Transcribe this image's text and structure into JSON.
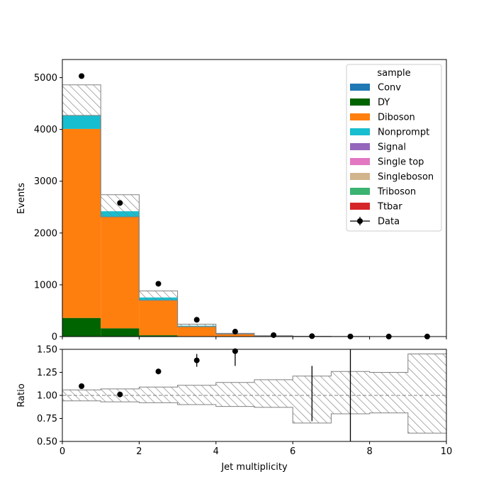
{
  "colors": {
    "Conv": "#1f77b4",
    "DY": "#006400",
    "Diboson": "#ff7f0e",
    "Nonprompt": "#17becf",
    "Signal": "#9467bd",
    "Single top": "#e377c2",
    "Singleboson": "#d2b48c",
    "Triboson": "#3cb371",
    "Ttbar": "#d62728",
    "Data": "#000000",
    "uncertainty": "#808080"
  },
  "chart_data": [
    {
      "type": "bar",
      "stacked": true,
      "bin_edges": [
        0,
        1,
        2,
        3,
        4,
        5,
        6,
        7,
        8,
        9,
        10
      ],
      "xlim": [
        0,
        10
      ],
      "ylim": [
        0,
        5350
      ],
      "xticks": [
        0,
        2,
        4,
        6,
        8,
        10
      ],
      "yticks": [
        0,
        1000,
        2000,
        3000,
        4000,
        5000
      ],
      "ylabel": "Events",
      "xlabel": "",
      "legend_title": "sample",
      "legend_position": "top-right",
      "grid": false,
      "series": [
        {
          "name": "Conv",
          "values": [
            0,
            0,
            0,
            0,
            0,
            0,
            0,
            0,
            0,
            0
          ]
        },
        {
          "name": "DY",
          "values": [
            360,
            160,
            25,
            5,
            2,
            0,
            0,
            0,
            0,
            0
          ]
        },
        {
          "name": "Diboson",
          "values": [
            3650,
            2150,
            680,
            190,
            50,
            12,
            4,
            1,
            0,
            0
          ]
        },
        {
          "name": "Nonprompt",
          "values": [
            260,
            110,
            50,
            15,
            5,
            2,
            1,
            0,
            0,
            0
          ]
        },
        {
          "name": "Signal",
          "values": [
            0,
            0,
            0,
            0,
            0,
            0,
            0,
            0,
            0,
            0
          ]
        },
        {
          "name": "Single top",
          "values": [
            0,
            0,
            0,
            0,
            0,
            0,
            0,
            0,
            0,
            0
          ]
        },
        {
          "name": "Singleboson",
          "values": [
            0,
            0,
            0,
            0,
            0,
            0,
            0,
            0,
            0,
            0
          ]
        },
        {
          "name": "Triboson",
          "values": [
            0,
            0,
            0,
            0,
            0,
            0,
            0,
            0,
            0,
            0
          ]
        },
        {
          "name": "Ttbar",
          "values": [
            0,
            0,
            0,
            0,
            0,
            0,
            0,
            0,
            0,
            0
          ]
        }
      ],
      "uncertainty_band": {
        "lower": [
          4270,
          2310,
          700,
          190,
          48,
          12,
          3,
          1,
          0,
          0
        ],
        "upper": [
          4860,
          2740,
          880,
          240,
          64,
          17,
          6,
          2,
          0,
          0
        ]
      },
      "data_points": {
        "name": "Data",
        "x": [
          0.5,
          1.5,
          2.5,
          3.5,
          4.5,
          5.5,
          6.5,
          7.5,
          8.5,
          9.5
        ],
        "y": [
          5030,
          2580,
          1020,
          325,
          95,
          28,
          8,
          2,
          1,
          1
        ]
      }
    },
    {
      "type": "scatter",
      "bin_edges": [
        0,
        1,
        2,
        3,
        4,
        5,
        6,
        7,
        8,
        9,
        10
      ],
      "xlim": [
        0,
        10
      ],
      "ylim": [
        0.5,
        1.5
      ],
      "xticks": [
        0,
        2,
        4,
        6,
        8,
        10
      ],
      "yticks": [
        "0.50",
        "0.75",
        "1.00",
        "1.25",
        "1.50"
      ],
      "xlabel": "Jet multiplicity",
      "ylabel": "Ratio",
      "reference_line": 1.0,
      "grid": false,
      "band": {
        "lower": [
          0.94,
          0.93,
          0.92,
          0.9,
          0.88,
          0.87,
          0.7,
          0.8,
          0.81,
          0.59
        ],
        "upper": [
          1.06,
          1.07,
          1.09,
          1.11,
          1.14,
          1.17,
          1.21,
          1.26,
          1.25,
          1.45
        ]
      },
      "points": {
        "x": [
          0.5,
          1.5,
          2.5,
          3.5,
          4.5,
          6.5,
          7.5
        ],
        "y": [
          1.1,
          1.01,
          1.26,
          1.38,
          1.48,
          1.02,
          1.0
        ],
        "yerr_low": [
          0.02,
          0.02,
          0.03,
          0.07,
          0.16,
          0.3,
          0.9
        ],
        "yerr_high": [
          0.02,
          0.02,
          0.03,
          0.07,
          0.16,
          0.3,
          0.9
        ],
        "show_marker": [
          true,
          true,
          true,
          true,
          true,
          false,
          false
        ]
      }
    }
  ]
}
